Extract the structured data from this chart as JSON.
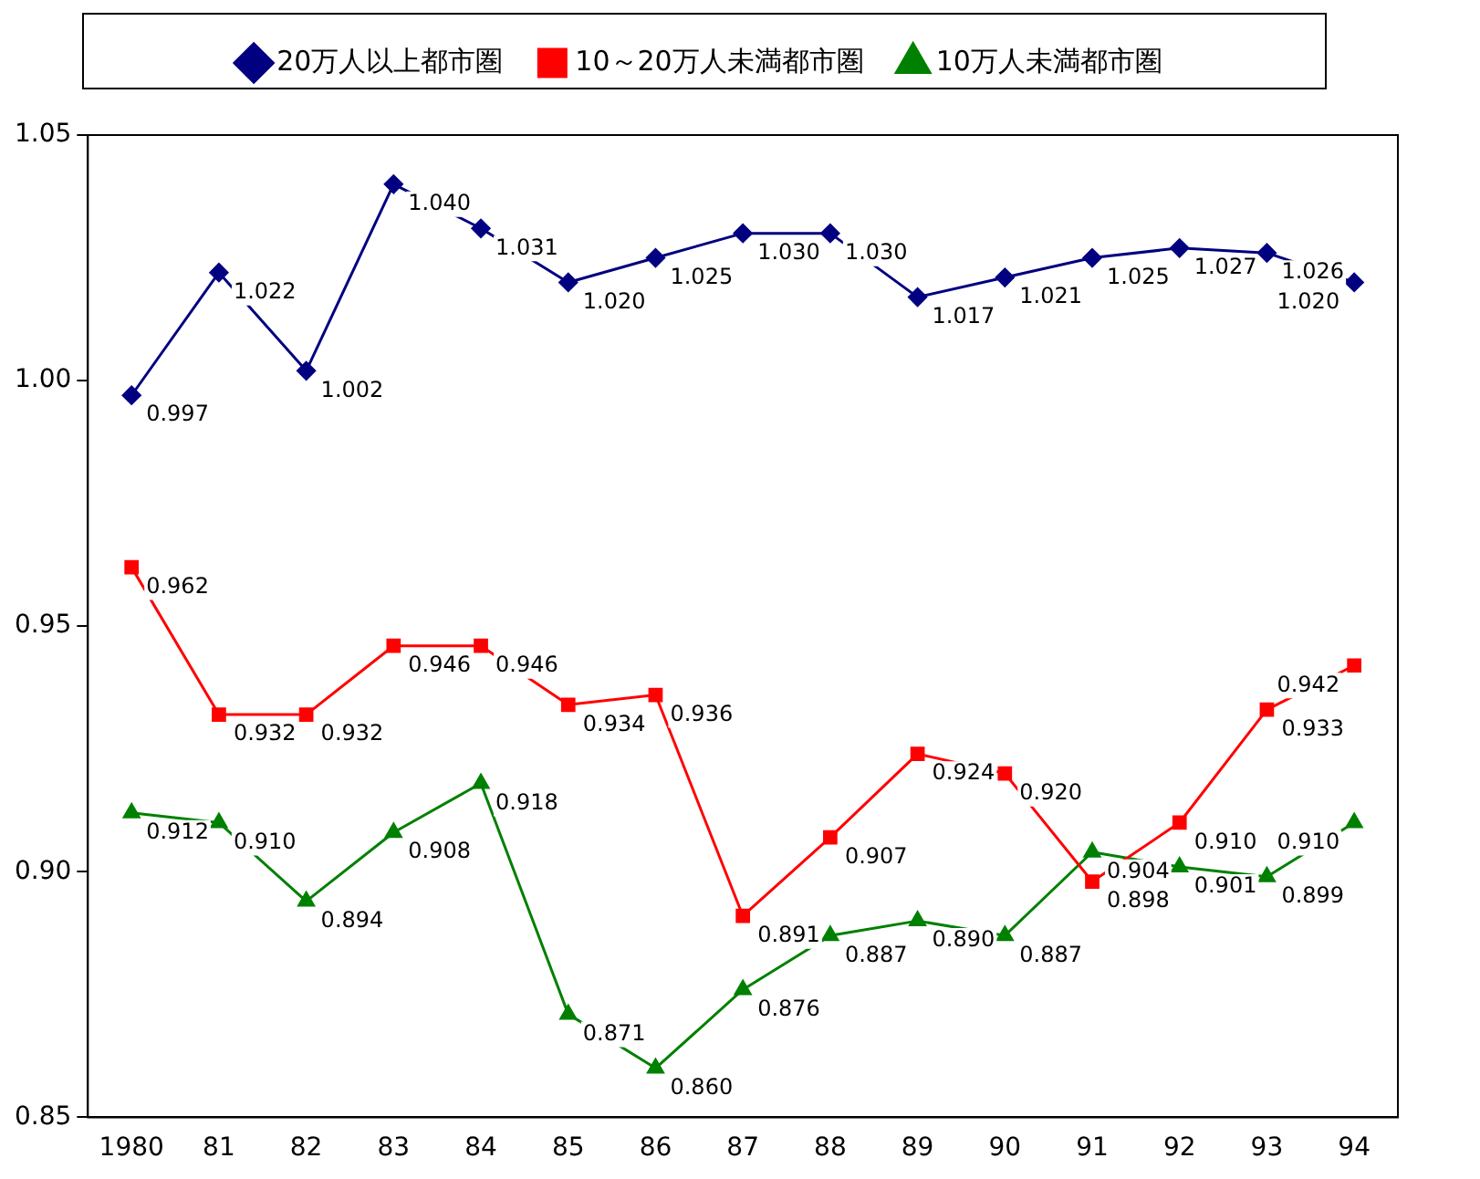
{
  "chart_data": {
    "type": "line",
    "categories": [
      "1980",
      "81",
      "82",
      "83",
      "84",
      "85",
      "86",
      "87",
      "88",
      "89",
      "90",
      "91",
      "92",
      "93",
      "94"
    ],
    "ylim": [
      0.85,
      1.05
    ],
    "yticks": [
      {
        "value": 0.85,
        "label": "0.85"
      },
      {
        "value": 0.9,
        "label": "0.90"
      },
      {
        "value": 0.95,
        "label": "0.95"
      },
      {
        "value": 1.0,
        "label": "1.00"
      },
      {
        "value": 1.05,
        "label": "1.05"
      }
    ],
    "grid": false,
    "legend": "top",
    "line_style": "solid",
    "series": [
      {
        "name": "20万人以上都市圏",
        "color": "#000080",
        "marker": "diamond",
        "values": [
          0.997,
          1.022,
          1.002,
          1.04,
          1.031,
          1.02,
          1.025,
          1.03,
          1.03,
          1.017,
          1.021,
          1.025,
          1.027,
          1.026,
          1.02
        ],
        "value_labels": [
          "0.997",
          "1.022",
          "1.002",
          "1.040",
          "1.031",
          "1.020",
          "1.025",
          "1.030",
          "1.030",
          "1.017",
          "1.021",
          "1.025",
          "1.027",
          "1.026",
          "1.020"
        ]
      },
      {
        "name": "10～20万人未満都市圏",
        "color": "#ff0000",
        "marker": "square",
        "values": [
          0.962,
          0.932,
          0.932,
          0.946,
          0.946,
          0.934,
          0.936,
          0.891,
          0.907,
          0.924,
          0.92,
          0.898,
          0.91,
          0.933,
          0.942
        ],
        "value_labels": [
          "0.962",
          "0.932",
          "0.932",
          "0.946",
          "0.946",
          "0.934",
          "0.936",
          "0.891",
          "0.907",
          "0.924",
          "0.920",
          "0.898",
          "0.910",
          "0.933",
          "0.942"
        ]
      },
      {
        "name": "10万人未満都市圏",
        "color": "#008000",
        "marker": "triangle",
        "values": [
          0.912,
          0.91,
          0.894,
          0.908,
          0.918,
          0.871,
          0.86,
          0.876,
          0.887,
          0.89,
          0.887,
          0.904,
          0.901,
          0.899,
          0.91
        ],
        "value_labels": [
          "0.912",
          "0.910",
          "0.894",
          "0.908",
          "0.918",
          "0.871",
          "0.860",
          "0.876",
          "0.887",
          "0.890",
          "0.887",
          "0.904",
          "0.901",
          "0.899",
          "0.910"
        ]
      }
    ]
  }
}
